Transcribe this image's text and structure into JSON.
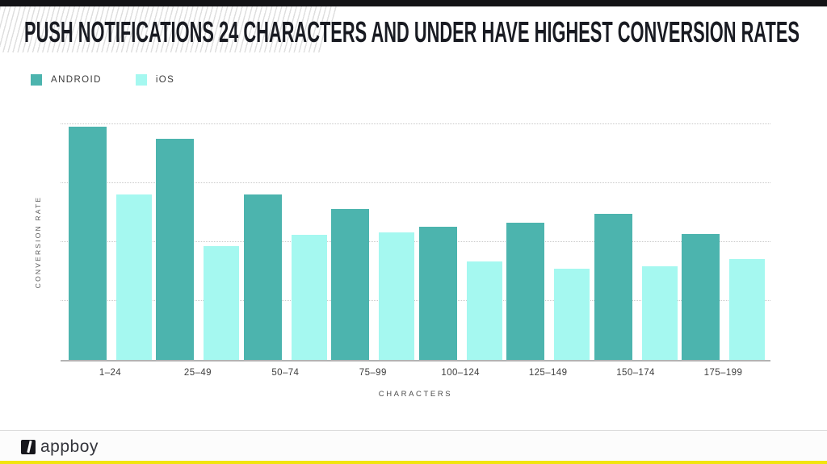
{
  "header": {
    "top_bar_color": "#131316"
  },
  "chart_data": {
    "type": "bar",
    "title": "PUSH NOTIFICATIONS 24 CHARACTERS AND UNDER HAVE HIGHEST CONVERSION RATES",
    "categories": [
      "1–24",
      "25–49",
      "50–74",
      "75–99",
      "100–124",
      "125–149",
      "150–174",
      "175–199"
    ],
    "series": [
      {
        "name": "ANDROID",
        "color": "#4cb4ae",
        "values": [
          3.96,
          3.75,
          2.81,
          2.56,
          2.26,
          2.33,
          2.48,
          2.14
        ]
      },
      {
        "name": "iOS",
        "color": "#a5f8f0",
        "values": [
          2.81,
          1.93,
          2.12,
          2.16,
          1.67,
          1.55,
          1.59,
          1.71
        ]
      }
    ],
    "xlabel": "CHARACTERS",
    "ylabel": "CONVERSION RATE",
    "ylim": [
      0,
      4.14
    ],
    "gridlines": [
      1,
      2,
      3,
      4
    ],
    "grid": "horizontal dotted, no numeric y tick labels shown",
    "legend_position": "top-left",
    "note": "values are in gridline units; y axis is unlabeled in the source image"
  },
  "colors": {
    "android": "#4cb4ae",
    "ios": "#a5f8f0",
    "gridline": "#c9c9c9",
    "axis": "#b3b3b3",
    "accent_bottom": "#f2e40e"
  },
  "footer": {
    "brand": "appboy"
  }
}
